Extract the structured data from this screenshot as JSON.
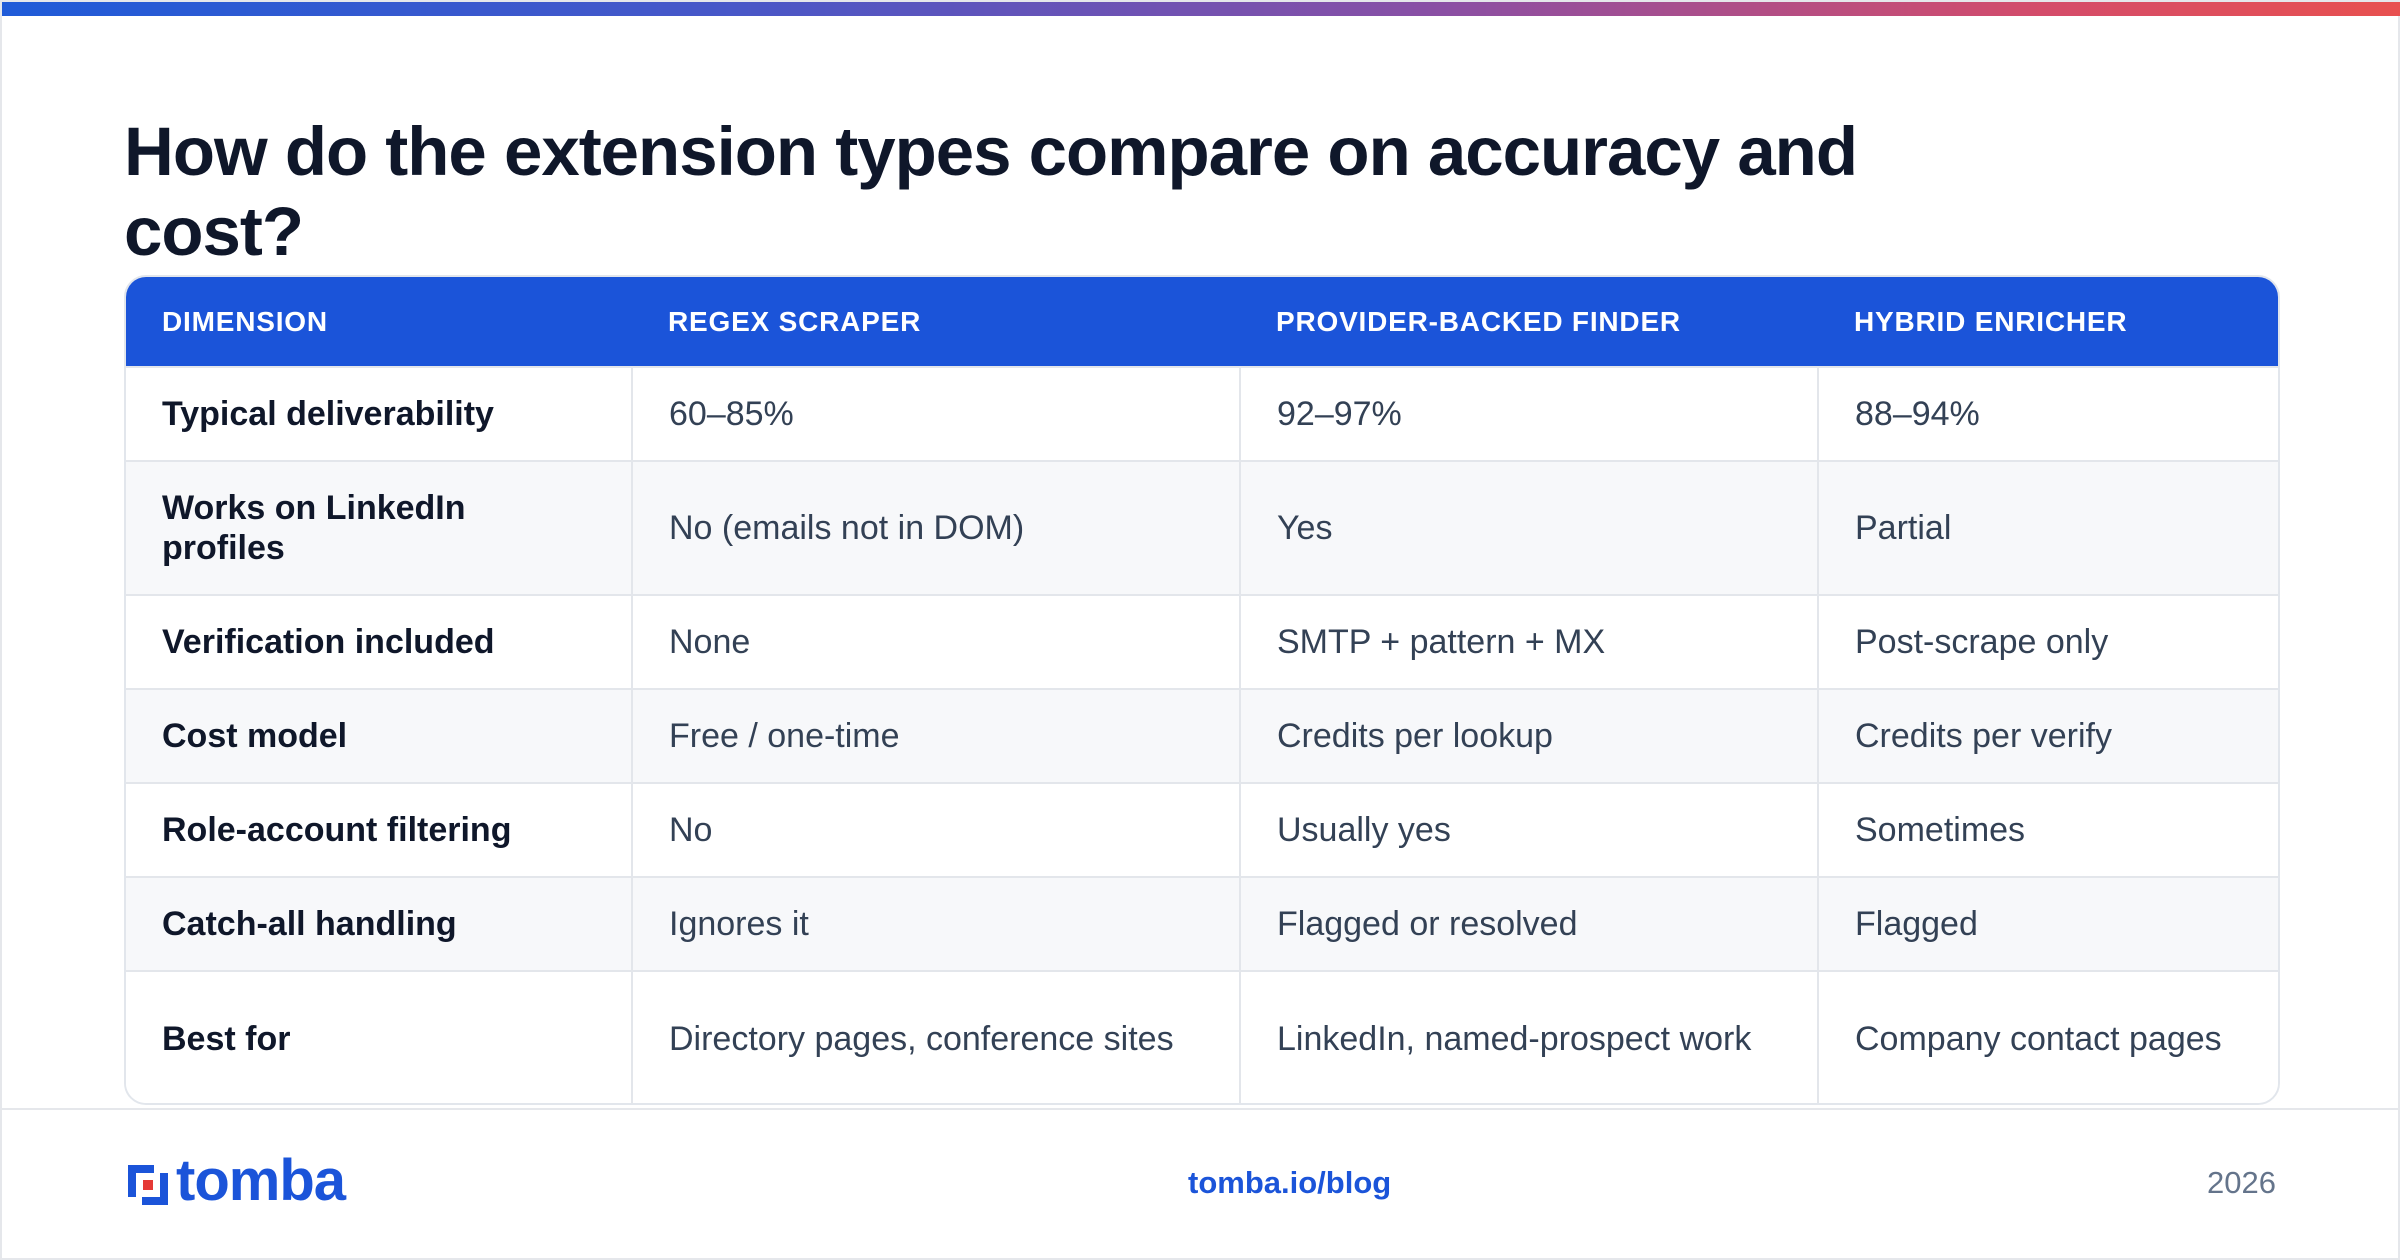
{
  "header": {
    "title": "How do the extension types compare on accuracy and cost?"
  },
  "table": {
    "columns": [
      "DIMENSION",
      "REGEX SCRAPER",
      "PROVIDER-BACKED FINDER",
      "HYBRID ENRICHER"
    ],
    "rows": [
      [
        "Typical deliverability",
        "60–85%",
        "92–97%",
        "88–94%"
      ],
      [
        "Works on LinkedIn profiles",
        "No (emails not in DOM)",
        "Yes",
        "Partial"
      ],
      [
        "Verification included",
        "None",
        "SMTP + pattern + MX",
        "Post-scrape only"
      ],
      [
        "Cost model",
        "Free / one-time",
        "Credits per lookup",
        "Credits per verify"
      ],
      [
        "Role-account filtering",
        "No",
        "Usually yes",
        "Sometimes"
      ],
      [
        "Catch-all handling",
        "Ignores it",
        "Flagged or resolved",
        "Flagged"
      ],
      [
        "Best for",
        "Directory pages, conference sites",
        "LinkedIn, named-prospect work",
        "Company contact pages"
      ]
    ]
  },
  "footer": {
    "logo_text": "tomba",
    "link": "tomba.io/blog",
    "year": "2026"
  },
  "colors": {
    "accent": "#1b54d9",
    "heading": "#0f172a",
    "body_text": "#334155",
    "row_alt": "#f7f8fa",
    "gradient_start": "#1f5bd8",
    "gradient_end": "#e8504f"
  },
  "icons": {
    "logo": "tomba-logo-icon"
  }
}
